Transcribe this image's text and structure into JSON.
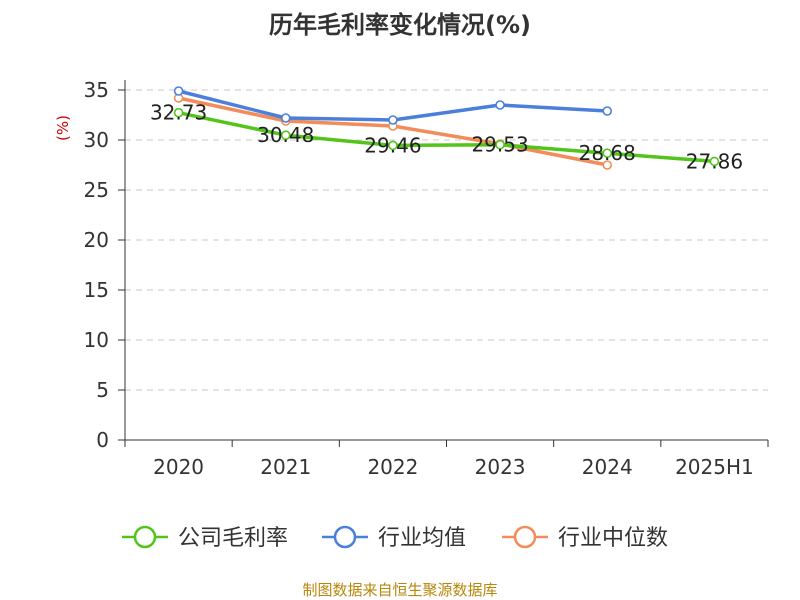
{
  "chart_data": {
    "type": "line",
    "title": "历年毛利率变化情况(%)",
    "ylabel": "(%)",
    "xlabel": "",
    "categories": [
      "2020",
      "2021",
      "2022",
      "2023",
      "2024",
      "2025H1"
    ],
    "ylim": [
      0,
      35
    ],
    "yticks": [
      0,
      5,
      10,
      15,
      20,
      25,
      30,
      35
    ],
    "grid": true,
    "legend_position": "bottom",
    "series": [
      {
        "name": "公司毛利率",
        "color": "#52c41a",
        "values": [
          32.73,
          30.48,
          29.46,
          29.53,
          28.68,
          27.86
        ],
        "labels": [
          "32.73",
          "30.48",
          "29.46",
          "29.53",
          "28.68",
          "27.86"
        ]
      },
      {
        "name": "行业均值",
        "color": "#4a7fdb",
        "values": [
          34.9,
          32.2,
          32.0,
          33.5,
          32.9,
          null
        ]
      },
      {
        "name": "行业中位数",
        "color": "#f28c5a",
        "values": [
          34.2,
          31.9,
          31.4,
          29.6,
          27.5,
          null
        ]
      }
    ]
  },
  "footer": {
    "source": "制图数据来自恒生聚源数据库"
  }
}
